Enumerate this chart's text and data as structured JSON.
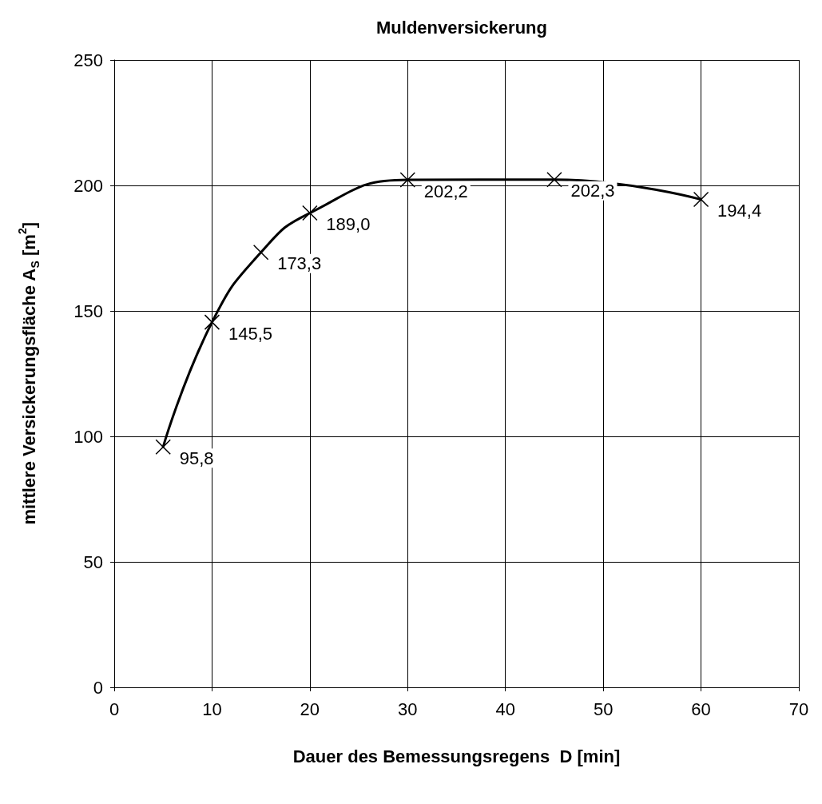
{
  "chart_data": {
    "type": "line",
    "title": "Muldenversickerung",
    "xlabel": "Dauer des Bemessungsregens  D [min]",
    "ylabel": "mittlere Versickerungsfläche A$_{S}$ [m$^{2}$]",
    "x": [
      5,
      10,
      15,
      20,
      30,
      45,
      60
    ],
    "series": [
      {
        "color": "#000000",
        "values": [
          95.8,
          145.5,
          173.3,
          189.0,
          202.2,
          202.3,
          194.4
        ],
        "value_labels": [
          "95,8",
          "145,5",
          "173,3",
          "189,0",
          "202,2",
          "202,3",
          "194,4"
        ]
      }
    ],
    "xlim": [
      0,
      70
    ],
    "xticks": [
      0,
      10,
      20,
      30,
      40,
      50,
      60,
      70
    ],
    "ylim": [
      0,
      250
    ],
    "yticks": [
      0,
      50,
      100,
      150,
      200,
      250
    ],
    "grid": true,
    "marker": "cross",
    "line_style": "solid"
  }
}
